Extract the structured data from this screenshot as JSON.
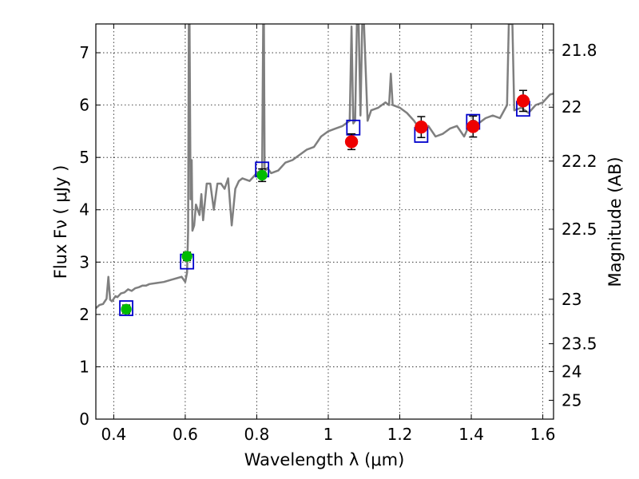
{
  "chart_data": {
    "type": "line",
    "xlabel": "Wavelength  λ (μm)",
    "ylabel": "Flux  Fν  ( μJy )",
    "y2label": "Magnitude (AB)",
    "xlim": [
      0.35,
      1.63
    ],
    "ylim": [
      0,
      7.55
    ],
    "grid": true,
    "x_ticks": [
      0.4,
      0.6,
      0.8,
      1.0,
      1.2,
      1.4,
      1.6
    ],
    "x_tick_labels": [
      "0.4",
      "0.6",
      "0.8",
      "1",
      "1.2",
      "1.4",
      "1.6"
    ],
    "y_ticks": [
      0,
      1,
      2,
      3,
      4,
      5,
      6,
      7
    ],
    "y_tick_labels": [
      "0",
      "1",
      "2",
      "3",
      "4",
      "5",
      "6",
      "7"
    ],
    "mag_ticks": [
      {
        "label": "21.8",
        "flux": 7.05
      },
      {
        "label": "22",
        "flux": 5.96
      },
      {
        "label": "22.2",
        "flux": 4.93
      },
      {
        "label": "22.5",
        "flux": 3.63
      },
      {
        "label": "23",
        "flux": 2.29
      },
      {
        "label": "23.5",
        "flux": 1.44
      },
      {
        "label": "24",
        "flux": 0.91
      },
      {
        "label": "25",
        "flux": 0.36
      }
    ],
    "spectrum": {
      "color": "#7f7f7f",
      "x": [
        0.35,
        0.36,
        0.37,
        0.375,
        0.38,
        0.385,
        0.39,
        0.395,
        0.4,
        0.405,
        0.41,
        0.42,
        0.43,
        0.44,
        0.45,
        0.46,
        0.47,
        0.48,
        0.49,
        0.5,
        0.52,
        0.54,
        0.56,
        0.58,
        0.59,
        0.6,
        0.605,
        0.608,
        0.61,
        0.612,
        0.615,
        0.618,
        0.62,
        0.625,
        0.63,
        0.64,
        0.645,
        0.65,
        0.66,
        0.67,
        0.68,
        0.69,
        0.7,
        0.71,
        0.72,
        0.73,
        0.74,
        0.75,
        0.76,
        0.78,
        0.8,
        0.81,
        0.815,
        0.818,
        0.82,
        0.822,
        0.825,
        0.83,
        0.84,
        0.86,
        0.88,
        0.9,
        0.92,
        0.94,
        0.96,
        0.98,
        1.0,
        1.02,
        1.04,
        1.06,
        1.065,
        1.07,
        1.075,
        1.08,
        1.085,
        1.09,
        1.095,
        1.1,
        1.11,
        1.12,
        1.14,
        1.16,
        1.17,
        1.175,
        1.18,
        1.2,
        1.22,
        1.24,
        1.26,
        1.28,
        1.3,
        1.32,
        1.34,
        1.36,
        1.38,
        1.4,
        1.41,
        1.42,
        1.44,
        1.46,
        1.48,
        1.5,
        1.505,
        1.51,
        1.515,
        1.52,
        1.54,
        1.56,
        1.58,
        1.6,
        1.62,
        1.63
      ],
      "y": [
        2.12,
        2.18,
        2.2,
        2.25,
        2.3,
        2.72,
        2.28,
        2.25,
        2.3,
        2.35,
        2.33,
        2.4,
        2.42,
        2.48,
        2.45,
        2.5,
        2.52,
        2.55,
        2.55,
        2.58,
        2.6,
        2.62,
        2.66,
        2.7,
        2.72,
        2.62,
        2.8,
        3.6,
        7.55,
        7.55,
        4.2,
        4.95,
        3.6,
        3.7,
        4.1,
        3.9,
        4.3,
        3.8,
        4.5,
        4.5,
        4.0,
        4.5,
        4.5,
        4.4,
        4.6,
        3.7,
        4.4,
        4.55,
        4.6,
        4.55,
        4.7,
        4.75,
        4.8,
        7.55,
        7.55,
        4.8,
        4.75,
        4.8,
        4.7,
        4.75,
        4.9,
        4.95,
        5.05,
        5.15,
        5.2,
        5.4,
        5.5,
        5.55,
        5.6,
        5.7,
        7.5,
        5.65,
        5.7,
        7.55,
        7.55,
        5.8,
        7.55,
        7.55,
        5.7,
        5.9,
        5.95,
        6.05,
        6.0,
        6.6,
        6.0,
        5.95,
        5.85,
        5.7,
        5.5,
        5.6,
        5.4,
        5.45,
        5.55,
        5.6,
        5.4,
        5.7,
        5.7,
        5.65,
        5.75,
        5.8,
        5.75,
        6.0,
        7.55,
        7.55,
        7.55,
        5.9,
        5.95,
        5.85,
        6.0,
        6.05,
        6.2,
        6.22
      ]
    },
    "model_points": {
      "color": "#0000cc",
      "x": [
        0.435,
        0.605,
        0.815,
        1.07,
        1.26,
        1.405,
        1.545
      ],
      "y": [
        2.12,
        3.01,
        4.77,
        5.57,
        5.43,
        5.68,
        5.93
      ]
    },
    "optical_points": {
      "color": "#00bb00",
      "x": [
        0.435,
        0.605,
        0.815
      ],
      "y": [
        2.1,
        3.11,
        4.66
      ],
      "err": [
        0.08,
        0.08,
        0.12
      ]
    },
    "nir_points": {
      "color": "#ee0000",
      "x": [
        1.065,
        1.26,
        1.405,
        1.545
      ],
      "y": [
        5.3,
        5.58,
        5.59,
        6.08
      ],
      "err": [
        0.15,
        0.2,
        0.2,
        0.2
      ]
    }
  }
}
